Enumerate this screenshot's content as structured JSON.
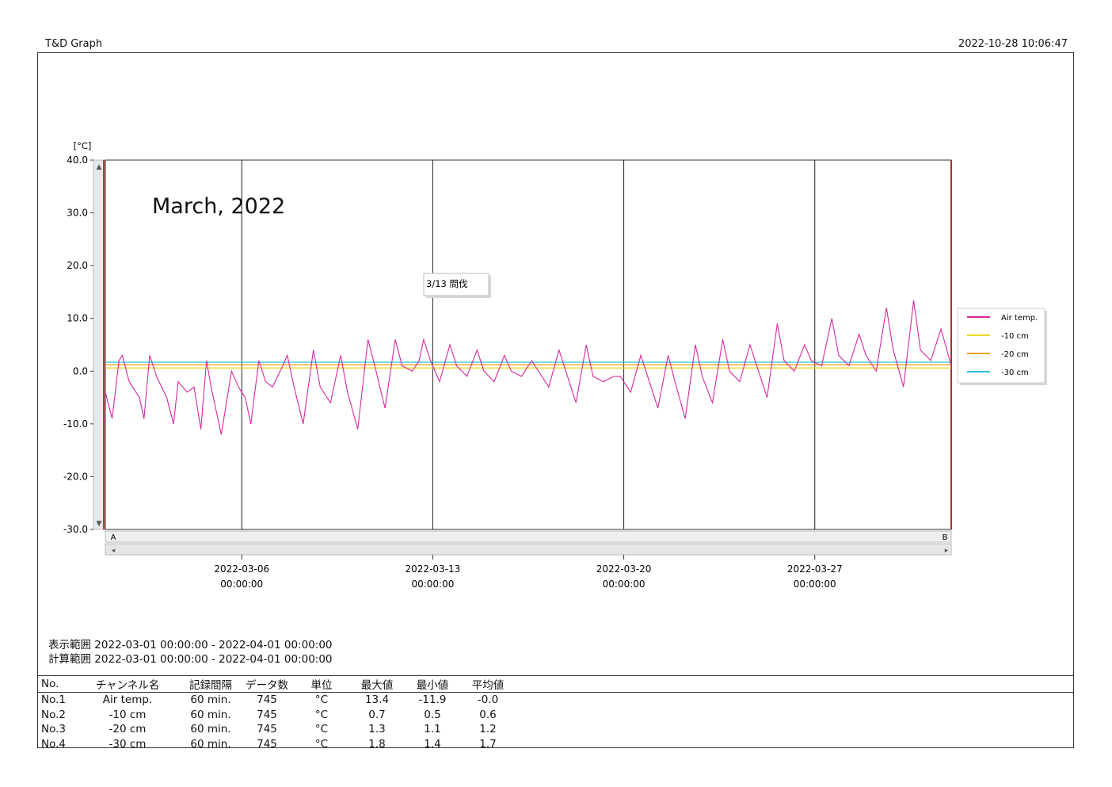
{
  "header": {
    "app_title": "T&D Graph",
    "printed_at": "2022-10-28 10:06:47"
  },
  "chart_data": {
    "type": "line",
    "y_unit_label": "[°C]",
    "ylim": [
      -30,
      40
    ],
    "y_ticks": [
      "40.0",
      "30.0",
      "20.0",
      "10.0",
      "0.0",
      "-10.0",
      "-20.0",
      "-30.0"
    ],
    "y_tick_values": [
      40,
      30,
      20,
      10,
      0,
      -10,
      -20,
      -30
    ],
    "xlim": [
      "2022-03-01 00:00:00",
      "2022-04-01 00:00:00"
    ],
    "x_ticks": [
      {
        "date": "2022-03-06",
        "time": "00:00:00",
        "x": "2022-03-06 00:00:00"
      },
      {
        "date": "2022-03-13",
        "time": "00:00:00",
        "x": "2022-03-13 00:00:00"
      },
      {
        "date": "2022-03-20",
        "time": "00:00:00",
        "x": "2022-03-20 00:00:00"
      },
      {
        "date": "2022-03-27",
        "time": "00:00:00",
        "x": "2022-03-27 00:00:00"
      }
    ],
    "grid": "vertical",
    "annotation_title": "March, 2022",
    "callout": {
      "text": "3/13 間伐",
      "x": "2022-03-13 00:00:00",
      "y": 17
    },
    "cursor_labels": [
      "A",
      "B"
    ],
    "legend_position": "right",
    "series": [
      {
        "name": "Air temp.",
        "color": "#d6289e",
        "points": [
          [
            "2022-03-01 00:00",
            -4
          ],
          [
            "2022-03-01 06:00",
            -9
          ],
          [
            "2022-03-01 12:00",
            2
          ],
          [
            "2022-03-01 15:00",
            3
          ],
          [
            "2022-03-01 21:00",
            -2
          ],
          [
            "2022-03-02 06:00",
            -5
          ],
          [
            "2022-03-02 10:00",
            -9
          ],
          [
            "2022-03-02 15:00",
            3
          ],
          [
            "2022-03-02 21:00",
            -1
          ],
          [
            "2022-03-03 06:00",
            -5
          ],
          [
            "2022-03-03 12:00",
            -10
          ],
          [
            "2022-03-03 16:00",
            -2
          ],
          [
            "2022-03-04 00:00",
            -4
          ],
          [
            "2022-03-04 06:00",
            -3
          ],
          [
            "2022-03-04 12:00",
            -11
          ],
          [
            "2022-03-04 17:00",
            2
          ],
          [
            "2022-03-04 21:00",
            -3
          ],
          [
            "2022-03-05 06:00",
            -12
          ],
          [
            "2022-03-05 15:00",
            0
          ],
          [
            "2022-03-05 21:00",
            -3
          ],
          [
            "2022-03-06 03:00",
            -5
          ],
          [
            "2022-03-06 08:00",
            -10
          ],
          [
            "2022-03-06 15:00",
            2
          ],
          [
            "2022-03-06 21:00",
            -2
          ],
          [
            "2022-03-07 03:00",
            -3
          ],
          [
            "2022-03-07 12:00",
            1
          ],
          [
            "2022-03-07 16:00",
            3
          ],
          [
            "2022-03-07 22:00",
            -3
          ],
          [
            "2022-03-08 06:00",
            -10
          ],
          [
            "2022-03-08 15:00",
            4
          ],
          [
            "2022-03-08 21:00",
            -3
          ],
          [
            "2022-03-09 06:00",
            -6
          ],
          [
            "2022-03-09 15:00",
            3
          ],
          [
            "2022-03-09 21:00",
            -4
          ],
          [
            "2022-03-10 06:00",
            -11
          ],
          [
            "2022-03-10 15:00",
            6
          ],
          [
            "2022-03-10 21:00",
            1
          ],
          [
            "2022-03-11 06:00",
            -7
          ],
          [
            "2022-03-11 15:00",
            6
          ],
          [
            "2022-03-11 21:00",
            1
          ],
          [
            "2022-03-12 06:00",
            0
          ],
          [
            "2022-03-12 12:00",
            2
          ],
          [
            "2022-03-12 16:00",
            6
          ],
          [
            "2022-03-12 22:00",
            2
          ],
          [
            "2022-03-13 06:00",
            -2
          ],
          [
            "2022-03-13 15:00",
            5
          ],
          [
            "2022-03-13 21:00",
            1
          ],
          [
            "2022-03-14 06:00",
            -1
          ],
          [
            "2022-03-14 15:00",
            4
          ],
          [
            "2022-03-14 21:00",
            0
          ],
          [
            "2022-03-15 06:00",
            -2
          ],
          [
            "2022-03-15 15:00",
            3
          ],
          [
            "2022-03-15 21:00",
            0
          ],
          [
            "2022-03-16 06:00",
            -1
          ],
          [
            "2022-03-16 15:00",
            2
          ],
          [
            "2022-03-16 21:00",
            0
          ],
          [
            "2022-03-17 06:00",
            -3
          ],
          [
            "2022-03-17 15:00",
            4
          ],
          [
            "2022-03-17 21:00",
            0
          ],
          [
            "2022-03-18 06:00",
            -6
          ],
          [
            "2022-03-18 15:00",
            5
          ],
          [
            "2022-03-18 21:00",
            -1
          ],
          [
            "2022-03-19 06:00",
            -2
          ],
          [
            "2022-03-19 15:00",
            -1
          ],
          [
            "2022-03-19 21:00",
            -1
          ],
          [
            "2022-03-20 06:00",
            -4
          ],
          [
            "2022-03-20 15:00",
            3
          ],
          [
            "2022-03-20 21:00",
            -1
          ],
          [
            "2022-03-21 06:00",
            -7
          ],
          [
            "2022-03-21 15:00",
            3
          ],
          [
            "2022-03-21 21:00",
            -2
          ],
          [
            "2022-03-22 06:00",
            -9
          ],
          [
            "2022-03-22 15:00",
            5
          ],
          [
            "2022-03-22 21:00",
            -1
          ],
          [
            "2022-03-23 06:00",
            -6
          ],
          [
            "2022-03-23 15:00",
            6
          ],
          [
            "2022-03-23 21:00",
            0
          ],
          [
            "2022-03-24 06:00",
            -2
          ],
          [
            "2022-03-24 15:00",
            5
          ],
          [
            "2022-03-24 21:00",
            1
          ],
          [
            "2022-03-25 06:00",
            -5
          ],
          [
            "2022-03-25 15:00",
            9
          ],
          [
            "2022-03-25 21:00",
            2
          ],
          [
            "2022-03-26 06:00",
            0
          ],
          [
            "2022-03-26 15:00",
            5
          ],
          [
            "2022-03-26 21:00",
            2
          ],
          [
            "2022-03-27 06:00",
            1
          ],
          [
            "2022-03-27 15:00",
            10
          ],
          [
            "2022-03-27 21:00",
            3
          ],
          [
            "2022-03-28 06:00",
            1
          ],
          [
            "2022-03-28 15:00",
            7
          ],
          [
            "2022-03-28 21:00",
            3
          ],
          [
            "2022-03-29 06:00",
            0
          ],
          [
            "2022-03-29 15:00",
            12
          ],
          [
            "2022-03-29 21:00",
            4
          ],
          [
            "2022-03-30 06:00",
            -3
          ],
          [
            "2022-03-30 15:00",
            13.4
          ],
          [
            "2022-03-30 21:00",
            4
          ],
          [
            "2022-03-31 06:00",
            2
          ],
          [
            "2022-03-31 15:00",
            8
          ],
          [
            "2022-04-01 00:00",
            1
          ]
        ]
      },
      {
        "name": "-10 cm",
        "color": "#e8d62a",
        "points": [
          [
            "2022-03-01 00:00",
            0.6
          ],
          [
            "2022-03-20 00:00",
            0.6
          ],
          [
            "2022-04-01 00:00",
            0.6
          ]
        ]
      },
      {
        "name": "-20 cm",
        "color": "#f0a020",
        "points": [
          [
            "2022-03-01 00:00",
            1.2
          ],
          [
            "2022-03-20 00:00",
            1.2
          ],
          [
            "2022-04-01 00:00",
            1.2
          ]
        ]
      },
      {
        "name": "-30 cm",
        "color": "#2cbfd6",
        "points": [
          [
            "2022-03-01 00:00",
            1.7
          ],
          [
            "2022-03-20 00:00",
            1.7
          ],
          [
            "2022-04-01 00:00",
            1.7
          ]
        ]
      }
    ]
  },
  "ranges": {
    "display_label": "表示範囲",
    "display_value": "2022-03-01 00:00:00 - 2022-04-01 00:00:00",
    "calc_label": "計算範囲",
    "calc_value": "2022-03-01 00:00:00 - 2022-04-01 00:00:00"
  },
  "table": {
    "headers": [
      "No.",
      "チャンネル名",
      "記録間隔",
      "データ数",
      "単位",
      "最大値",
      "最小値",
      "平均値"
    ],
    "rows": [
      [
        "No.1",
        "Air temp.",
        "60 min.",
        "745",
        "°C",
        "13.4",
        "-11.9",
        "-0.0"
      ],
      [
        "No.2",
        "-10 cm",
        "60 min.",
        "745",
        "°C",
        "0.7",
        "0.5",
        "0.6"
      ],
      [
        "No.3",
        "-20 cm",
        "60 min.",
        "745",
        "°C",
        "1.3",
        "1.1",
        "1.2"
      ],
      [
        "No.4",
        "-30 cm",
        "60 min.",
        "745",
        "°C",
        "1.8",
        "1.4",
        "1.7"
      ]
    ]
  }
}
